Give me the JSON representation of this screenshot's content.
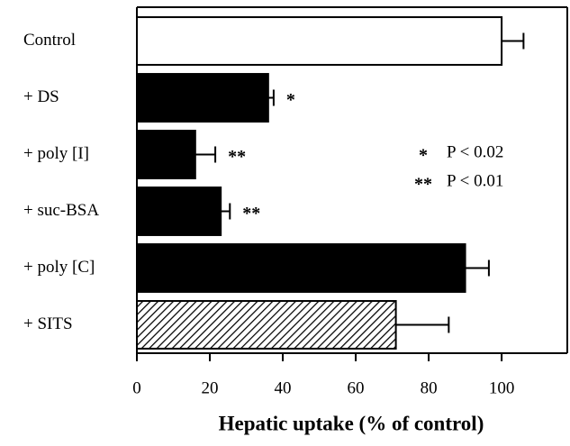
{
  "chart_data": {
    "type": "hbar",
    "categories": [
      "Control",
      "+ DS",
      "+ poly [I]",
      "+ suc-BSA",
      "+ poly [C]",
      "+ SITS"
    ],
    "values": [
      100,
      36,
      16,
      23,
      90,
      71
    ],
    "errors": [
      6,
      1.5,
      5.5,
      2.5,
      6.5,
      14.5
    ],
    "colors": [
      "#ffffff",
      "#000000",
      "#000000",
      "#000000",
      "#000000",
      "#ffffff"
    ],
    "hatched": [
      false,
      false,
      false,
      false,
      false,
      true
    ],
    "significance": [
      null,
      "*",
      "**",
      "**",
      null,
      null
    ],
    "notes": [
      {
        "symbol": "*",
        "text": "P < 0.02"
      },
      {
        "symbol": "**",
        "text": "P < 0.01"
      }
    ],
    "xlabel": "Hepatic uptake (% of control)",
    "xlim": [
      0,
      118
    ],
    "xticks": [
      0,
      20,
      40,
      60,
      80,
      100
    ]
  }
}
